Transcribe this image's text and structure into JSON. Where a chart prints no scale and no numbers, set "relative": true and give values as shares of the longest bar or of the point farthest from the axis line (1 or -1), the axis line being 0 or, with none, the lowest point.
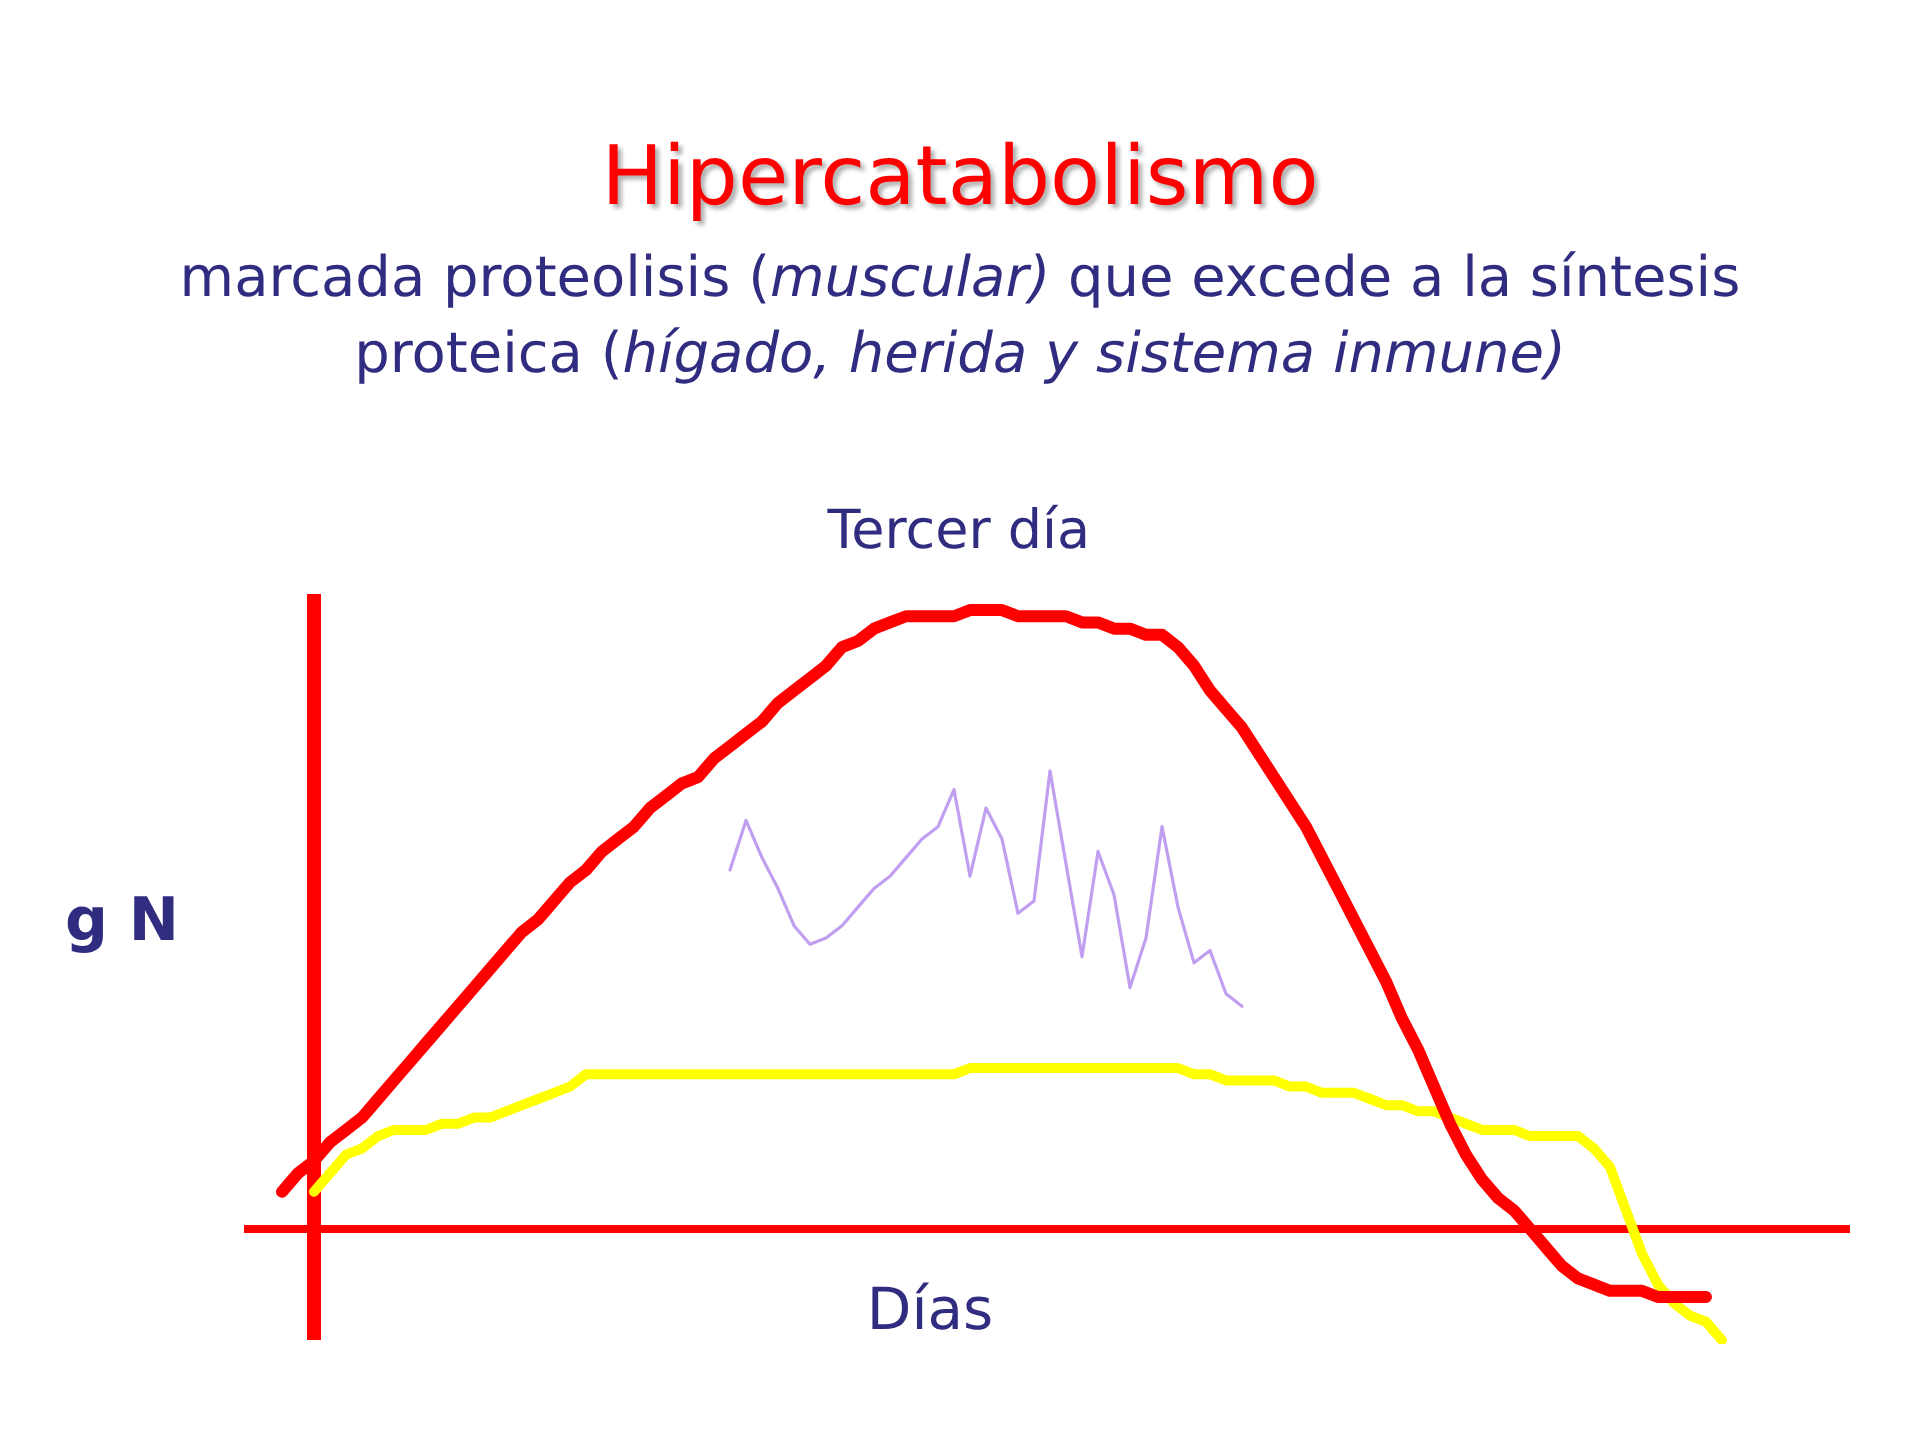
{
  "chart_data": {
    "type": "line",
    "title": "Hipercatabolismo",
    "subtitle": "marcada proteolisis (muscular) que excede a la síntesis proteica (hígado, herida y sistema inmune)",
    "xlabel": "Días",
    "ylabel": "g N",
    "annotations": [
      "Tercer día"
    ],
    "relative": true,
    "ref_lines": [
      {
        "axis": "y",
        "value": 0,
        "color": "#ff0000"
      }
    ],
    "categories": [
      null,
      null,
      null,
      null,
      null,
      null,
      null,
      null,
      null,
      null,
      null,
      null,
      null,
      null,
      null,
      null,
      null,
      null,
      null,
      null,
      null,
      null,
      null,
      null,
      null,
      null,
      null,
      null,
      null,
      null,
      null,
      null,
      null,
      null,
      null,
      null,
      null,
      null,
      null,
      null,
      null,
      null,
      null,
      null,
      null,
      null,
      null,
      null,
      null,
      null,
      null,
      null,
      null,
      null,
      null,
      null,
      null,
      null,
      null,
      null,
      null,
      null,
      null,
      null,
      null,
      null,
      null,
      null,
      null,
      null,
      null,
      null,
      null,
      null,
      null,
      null,
      null,
      null,
      null,
      null,
      null,
      null,
      null,
      null,
      null,
      null,
      null,
      null,
      null,
      null,
      null
    ],
    "series": [
      {
        "color": "#ff0000",
        "values": [
          0.06,
          0.09,
          0.11,
          0.14,
          0.16,
          0.18,
          0.21,
          0.24,
          0.27,
          0.3,
          0.33,
          0.36,
          0.39,
          0.42,
          0.45,
          0.48,
          0.5,
          0.53,
          0.56,
          0.58,
          0.61,
          0.63,
          0.65,
          0.68,
          0.7,
          0.72,
          0.73,
          0.76,
          0.78,
          0.8,
          0.82,
          0.85,
          0.87,
          0.89,
          0.91,
          0.94,
          0.95,
          0.97,
          0.98,
          0.99,
          0.99,
          0.99,
          0.99,
          1.0,
          1.0,
          1.0,
          0.99,
          0.99,
          0.99,
          0.99,
          0.98,
          0.98,
          0.97,
          0.97,
          0.96,
          0.96,
          0.94,
          0.91,
          0.87,
          0.84,
          0.81,
          0.77,
          0.73,
          0.69,
          0.65,
          0.6,
          0.55,
          0.5,
          0.45,
          0.4,
          0.34,
          0.29,
          0.23,
          0.17,
          0.12,
          0.08,
          0.05,
          0.03,
          0.0,
          -0.03,
          -0.06,
          -0.08,
          -0.09,
          -0.1,
          -0.1,
          -0.1,
          -0.11,
          -0.11,
          -0.11,
          -0.11,
          null
        ]
      },
      {
        "color": "#ffff00",
        "values": [
          null,
          null,
          0.06,
          0.09,
          0.12,
          0.13,
          0.15,
          0.16,
          0.16,
          0.16,
          0.17,
          0.17,
          0.18,
          0.18,
          0.19,
          0.2,
          0.21,
          0.22,
          0.23,
          0.25,
          0.25,
          0.25,
          0.25,
          0.25,
          0.25,
          0.25,
          0.25,
          0.25,
          0.25,
          0.25,
          0.25,
          0.25,
          0.25,
          0.25,
          0.25,
          0.25,
          0.25,
          0.25,
          0.25,
          0.25,
          0.25,
          0.25,
          0.25,
          0.26,
          0.26,
          0.26,
          0.26,
          0.26,
          0.26,
          0.26,
          0.26,
          0.26,
          0.26,
          0.26,
          0.26,
          0.26,
          0.26,
          0.25,
          0.25,
          0.24,
          0.24,
          0.24,
          0.24,
          0.23,
          0.23,
          0.22,
          0.22,
          0.22,
          0.21,
          0.2,
          0.2,
          0.19,
          0.19,
          0.18,
          0.17,
          0.16,
          0.16,
          0.16,
          0.15,
          0.15,
          0.15,
          0.15,
          0.13,
          0.1,
          0.03,
          -0.04,
          -0.09,
          -0.12,
          -0.14,
          -0.15,
          -0.18
        ]
      },
      {
        "color": "#c09ff0",
        "values": [
          null,
          null,
          null,
          null,
          null,
          null,
          null,
          null,
          null,
          null,
          null,
          null,
          null,
          null,
          null,
          null,
          null,
          null,
          null,
          null,
          null,
          null,
          null,
          null,
          null,
          null,
          null,
          null,
          0.58,
          0.66,
          0.6,
          0.55,
          0.49,
          0.46,
          0.47,
          0.49,
          0.52,
          0.55,
          0.57,
          0.6,
          0.63,
          0.65,
          0.71,
          0.57,
          0.68,
          0.63,
          0.51,
          0.53,
          0.74,
          0.59,
          0.44,
          0.61,
          0.54,
          0.39,
          0.47,
          0.65,
          0.52,
          0.43,
          0.45,
          0.38,
          0.36,
          null,
          null,
          null,
          null,
          null,
          null,
          null,
          null,
          null,
          null,
          null,
          null,
          null,
          null,
          null,
          null,
          null,
          null,
          null,
          null,
          null,
          null,
          null,
          null,
          null,
          null,
          null,
          null,
          null,
          null
        ]
      }
    ]
  }
}
